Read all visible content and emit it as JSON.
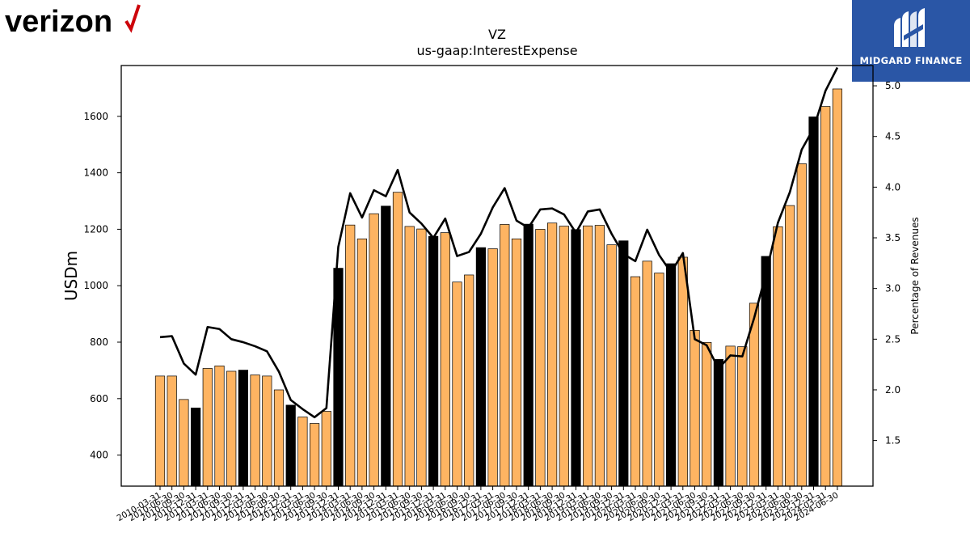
{
  "brand": {
    "left_logo_text": "verizon",
    "right_logo_text": "MIDGARD FINANCE"
  },
  "colors": {
    "bar_regular": "#feb462",
    "bar_year_end": "#000000",
    "line": "#000000",
    "logo_check": "#cd040b",
    "right_logo_bg": "#2a56a6"
  },
  "chart_data": {
    "type": "bar",
    "title": "VZ",
    "subtitle": "us-gaap:InterestExpense",
    "ylabel": "USDm",
    "y2label": "Percentage of Revenues",
    "ylim": [
      290,
      1780
    ],
    "y2lim": [
      1.05,
      5.2
    ],
    "yticks": [
      400,
      600,
      800,
      1000,
      1200,
      1400,
      1600
    ],
    "y2ticks": [
      "1.5",
      "2.0",
      "2.5",
      "3.0",
      "3.5",
      "4.0",
      "4.5",
      "5.0"
    ],
    "categories": [
      "2010-03-31",
      "2010-06-30",
      "2010-09-30",
      "2010-12-31",
      "2011-03-31",
      "2011-06-30",
      "2011-09-30",
      "2011-12-31",
      "2012-03-31",
      "2012-06-30",
      "2012-09-30",
      "2012-12-31",
      "2013-03-31",
      "2013-06-30",
      "2013-09-30",
      "2013-12-31",
      "2014-03-31",
      "2014-06-30",
      "2014-09-30",
      "2014-12-31",
      "2015-03-31",
      "2015-06-30",
      "2015-09-30",
      "2015-12-31",
      "2016-03-31",
      "2016-06-30",
      "2016-09-30",
      "2016-12-31",
      "2017-03-31",
      "2017-06-30",
      "2017-09-30",
      "2017-12-31",
      "2018-03-31",
      "2018-06-30",
      "2018-09-30",
      "2018-12-31",
      "2019-03-31",
      "2019-06-30",
      "2019-09-30",
      "2019-12-31",
      "2020-03-31",
      "2020-06-30",
      "2020-09-30",
      "2020-12-31",
      "2021-03-31",
      "2021-06-30",
      "2021-09-30",
      "2021-12-31",
      "2022-03-31",
      "2022-06-30",
      "2022-09-30",
      "2022-12-31",
      "2023-03-31",
      "2023-06-30",
      "2023-09-30",
      "2023-12-31",
      "2024-03-31",
      "2024-06-30"
    ],
    "year_end_categories": [
      "2010-12-31",
      "2011-12-31",
      "2012-12-31",
      "2013-12-31",
      "2014-12-31",
      "2015-12-31",
      "2016-12-31",
      "2017-12-31",
      "2018-12-31",
      "2019-12-31",
      "2020-12-31",
      "2021-12-31",
      "2022-12-31",
      "2023-12-31"
    ],
    "series": [
      {
        "type": "bar",
        "axis": "left",
        "values": [
          680,
          680,
          597,
          567,
          707,
          716,
          697,
          701,
          684,
          680,
          631,
          577,
          535,
          512,
          555,
          1062,
          1215,
          1166,
          1255,
          1282,
          1331,
          1210,
          1201,
          1175,
          1188,
          1013,
          1038,
          1135,
          1131,
          1217,
          1166,
          1218,
          1200,
          1222,
          1211,
          1199,
          1212,
          1214,
          1145,
          1159,
          1032,
          1087,
          1045,
          1078,
          1101,
          842,
          799,
          739,
          786,
          784,
          938,
          1104,
          1209,
          1284,
          1432,
          1598,
          1635,
          1697
        ]
      },
      {
        "type": "line",
        "axis": "right",
        "values": [
          2.52,
          2.53,
          2.26,
          2.15,
          2.62,
          2.6,
          2.5,
          2.47,
          2.43,
          2.38,
          2.18,
          1.9,
          1.81,
          1.73,
          1.82,
          3.41,
          3.94,
          3.7,
          3.97,
          3.91,
          4.17,
          3.75,
          3.64,
          3.5,
          3.69,
          3.32,
          3.36,
          3.54,
          3.8,
          3.99,
          3.67,
          3.6,
          3.78,
          3.79,
          3.73,
          3.55,
          3.76,
          3.78,
          3.54,
          3.34,
          3.27,
          3.58,
          3.33,
          3.16,
          3.35,
          2.5,
          2.44,
          2.21,
          2.34,
          2.33,
          2.71,
          3.15,
          3.65,
          3.95,
          4.37,
          4.58,
          4.95,
          5.18
        ]
      }
    ],
    "grid": false,
    "legend": "none"
  }
}
